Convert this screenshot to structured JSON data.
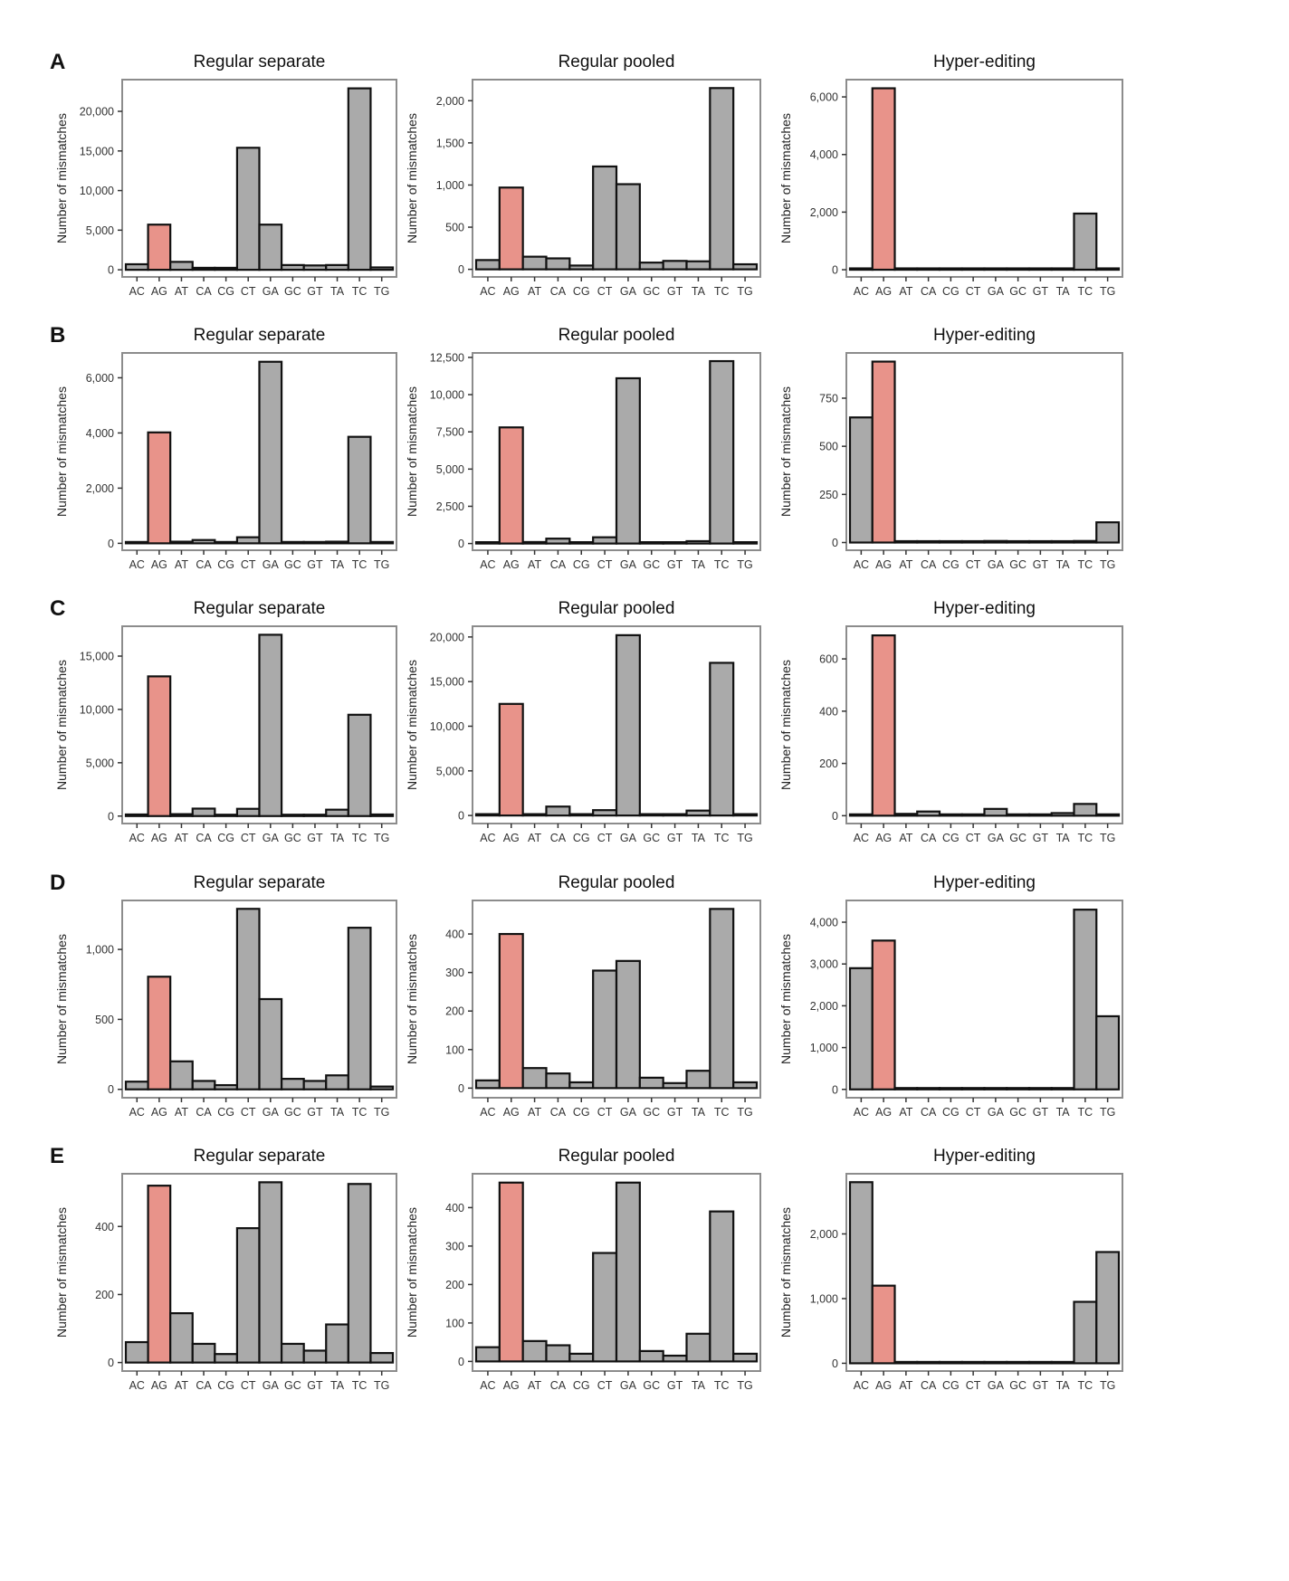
{
  "figure": {
    "colors": {
      "highlight": "#E8938A",
      "bar": "#AAAAAA",
      "edge": "#111111",
      "frame": "#8C8C8C"
    },
    "ylabel": "Number of mismatches"
  },
  "chart_data": [
    {
      "row": "A",
      "panels": [
        {
          "type": "bar",
          "title": "Regular separate",
          "ylabel": "Number of mismatches",
          "highlight": "AG",
          "categories": [
            "AC",
            "AG",
            "AT",
            "CA",
            "CG",
            "CT",
            "GA",
            "GC",
            "GT",
            "TA",
            "TC",
            "TG"
          ],
          "values": [
            700,
            5700,
            1000,
            250,
            250,
            15400,
            5700,
            600,
            550,
            600,
            22900,
            300
          ],
          "yticks": [
            0,
            5000,
            10000,
            15000,
            20000
          ],
          "ytick_labels": [
            "0",
            "5,000",
            "10,000",
            "15,000",
            "20,000"
          ],
          "ylim": [
            -900,
            24000
          ]
        },
        {
          "type": "bar",
          "title": "Regular pooled",
          "ylabel": "Number of mismatches",
          "highlight": "AG",
          "categories": [
            "AC",
            "AG",
            "AT",
            "CA",
            "CG",
            "CT",
            "GA",
            "GC",
            "GT",
            "TA",
            "TC",
            "TG"
          ],
          "values": [
            110,
            970,
            150,
            130,
            45,
            1220,
            1010,
            80,
            100,
            95,
            2150,
            60
          ],
          "yticks": [
            0,
            500,
            1000,
            1500,
            2000
          ],
          "ytick_labels": [
            "0",
            "500",
            "1,000",
            "1,500",
            "2,000"
          ],
          "ylim": [
            -90,
            2250
          ]
        },
        {
          "type": "bar",
          "title": "Hyper-editing",
          "ylabel": "Number of mismatches",
          "highlight": "AG",
          "categories": [
            "AC",
            "AG",
            "AT",
            "CA",
            "CG",
            "CT",
            "GA",
            "GC",
            "GT",
            "TA",
            "TC",
            "TG"
          ],
          "values": [
            0,
            6300,
            5,
            5,
            5,
            5,
            40,
            5,
            5,
            20,
            1950,
            5
          ],
          "yticks": [
            0,
            2000,
            4000,
            6000
          ],
          "ytick_labels": [
            "0",
            "2,000",
            "4,000",
            "6,000"
          ],
          "ylim": [
            -250,
            6600
          ]
        }
      ]
    },
    {
      "row": "B",
      "panels": [
        {
          "type": "bar",
          "title": "Regular separate",
          "ylabel": "Number of mismatches",
          "highlight": "AG",
          "categories": [
            "AC",
            "AG",
            "AT",
            "CA",
            "CG",
            "CT",
            "GA",
            "GC",
            "GT",
            "TA",
            "TC",
            "TG"
          ],
          "values": [
            30,
            4020,
            60,
            120,
            20,
            220,
            6580,
            20,
            20,
            60,
            3860,
            30
          ],
          "yticks": [
            0,
            2000,
            4000,
            6000
          ],
          "ytick_labels": [
            "0",
            "2,000",
            "4,000",
            "6,000"
          ],
          "ylim": [
            -250,
            6900
          ]
        },
        {
          "type": "bar",
          "title": "Regular pooled",
          "ylabel": "Number of mismatches",
          "highlight": "AG",
          "categories": [
            "AC",
            "AG",
            "AT",
            "CA",
            "CG",
            "CT",
            "GA",
            "GC",
            "GT",
            "TA",
            "TC",
            "TG"
          ],
          "values": [
            60,
            7800,
            100,
            330,
            30,
            420,
            11100,
            50,
            40,
            160,
            12250,
            70
          ],
          "yticks": [
            0,
            2500,
            5000,
            7500,
            10000,
            12500
          ],
          "ytick_labels": [
            "0",
            "2,500",
            "5,000",
            "7,500",
            "10,000",
            "12,500"
          ],
          "ylim": [
            -450,
            12800
          ]
        },
        {
          "type": "bar",
          "title": "Hyper-editing",
          "ylabel": "Number of mismatches",
          "highlight": "AG",
          "categories": [
            "AC",
            "AG",
            "AT",
            "CA",
            "CG",
            "CT",
            "GA",
            "GC",
            "GT",
            "TA",
            "TC",
            "TG"
          ],
          "values": [
            650,
            940,
            3,
            2,
            3,
            5,
            8,
            2,
            3,
            2,
            8,
            105
          ],
          "yticks": [
            0,
            250,
            500,
            750
          ],
          "ytick_labels": [
            "0",
            "250",
            "500",
            "750"
          ],
          "ylim": [
            -40,
            985
          ]
        }
      ]
    },
    {
      "row": "C",
      "panels": [
        {
          "type": "bar",
          "title": "Regular separate",
          "ylabel": "Number of mismatches",
          "highlight": "AG",
          "categories": [
            "AC",
            "AG",
            "AT",
            "CA",
            "CG",
            "CT",
            "GA",
            "GC",
            "GT",
            "TA",
            "TC",
            "TG"
          ],
          "values": [
            150,
            13100,
            180,
            700,
            40,
            680,
            17000,
            100,
            40,
            600,
            9500,
            150
          ],
          "yticks": [
            0,
            5000,
            10000,
            15000
          ],
          "ytick_labels": [
            "0",
            "5,000",
            "10,000",
            "15,000"
          ],
          "ylim": [
            -700,
            17800
          ]
        },
        {
          "type": "bar",
          "title": "Regular pooled",
          "ylabel": "Number of mismatches",
          "highlight": "AG",
          "categories": [
            "AC",
            "AG",
            "AT",
            "CA",
            "CG",
            "CT",
            "GA",
            "GC",
            "GT",
            "TA",
            "TC",
            "TG"
          ],
          "values": [
            120,
            12500,
            140,
            1000,
            40,
            600,
            20200,
            90,
            40,
            550,
            17100,
            150
          ],
          "yticks": [
            0,
            5000,
            10000,
            15000,
            20000
          ],
          "ytick_labels": [
            "0",
            "5,000",
            "10,000",
            "15,000",
            "20,000"
          ],
          "ylim": [
            -900,
            21200
          ]
        },
        {
          "type": "bar",
          "title": "Hyper-editing",
          "ylabel": "Number of mismatches",
          "highlight": "AG",
          "categories": [
            "AC",
            "AG",
            "AT",
            "CA",
            "CG",
            "CT",
            "GA",
            "GC",
            "GT",
            "TA",
            "TC",
            "TG"
          ],
          "values": [
            1,
            690,
            7,
            16,
            1,
            5,
            26,
            1,
            5,
            10,
            45,
            2
          ],
          "yticks": [
            0,
            200,
            400,
            600
          ],
          "ytick_labels": [
            "0",
            "200",
            "400",
            "600"
          ],
          "ylim": [
            -30,
            725
          ]
        }
      ]
    },
    {
      "row": "D",
      "panels": [
        {
          "type": "bar",
          "title": "Regular separate",
          "ylabel": "Number of mismatches",
          "highlight": "AG",
          "categories": [
            "AC",
            "AG",
            "AT",
            "CA",
            "CG",
            "CT",
            "GA",
            "GC",
            "GT",
            "TA",
            "TC",
            "TG"
          ],
          "values": [
            55,
            805,
            200,
            60,
            30,
            1290,
            645,
            75,
            60,
            100,
            1155,
            20
          ],
          "yticks": [
            0,
            500,
            1000
          ],
          "ytick_labels": [
            "0",
            "500",
            "1,000"
          ],
          "ylim": [
            -60,
            1350
          ]
        },
        {
          "type": "bar",
          "title": "Regular pooled",
          "ylabel": "Number of mismatches",
          "highlight": "AG",
          "categories": [
            "AC",
            "AG",
            "AT",
            "CA",
            "CG",
            "CT",
            "GA",
            "GC",
            "GT",
            "TA",
            "TC",
            "TG"
          ],
          "values": [
            20,
            400,
            52,
            38,
            15,
            305,
            330,
            27,
            13,
            45,
            465,
            15
          ],
          "yticks": [
            0,
            100,
            200,
            300,
            400
          ],
          "ytick_labels": [
            "0",
            "100",
            "200",
            "300",
            "400"
          ],
          "ylim": [
            -25,
            487
          ]
        },
        {
          "type": "bar",
          "title": "Hyper-editing",
          "ylabel": "Number of mismatches",
          "highlight": "AG",
          "categories": [
            "AC",
            "AG",
            "AT",
            "CA",
            "CG",
            "CT",
            "GA",
            "GC",
            "GT",
            "TA",
            "TC",
            "TG"
          ],
          "values": [
            2900,
            3560,
            5,
            5,
            5,
            10,
            5,
            5,
            5,
            5,
            4300,
            1750
          ],
          "yticks": [
            0,
            1000,
            2000,
            3000,
            4000
          ],
          "ytick_labels": [
            "0",
            "1,000",
            "2,000",
            "3,000",
            "4,000"
          ],
          "ylim": [
            -200,
            4520
          ]
        }
      ]
    },
    {
      "row": "E",
      "panels": [
        {
          "type": "bar",
          "title": "Regular separate",
          "ylabel": "Number of mismatches",
          "highlight": "AG",
          "categories": [
            "AC",
            "AG",
            "AT",
            "CA",
            "CG",
            "CT",
            "GA",
            "GC",
            "GT",
            "TA",
            "TC",
            "TG"
          ],
          "values": [
            60,
            520,
            145,
            55,
            25,
            395,
            530,
            55,
            35,
            112,
            525,
            28
          ],
          "yticks": [
            0,
            200,
            400
          ],
          "ytick_labels": [
            "0",
            "200",
            "400"
          ],
          "ylim": [
            -25,
            555
          ]
        },
        {
          "type": "bar",
          "title": "Regular pooled",
          "ylabel": "Number of mismatches",
          "highlight": "AG",
          "categories": [
            "AC",
            "AG",
            "AT",
            "CA",
            "CG",
            "CT",
            "GA",
            "GC",
            "GT",
            "TA",
            "TC",
            "TG"
          ],
          "values": [
            37,
            465,
            53,
            42,
            20,
            282,
            465,
            27,
            15,
            72,
            390,
            20
          ],
          "yticks": [
            0,
            100,
            200,
            300,
            400
          ],
          "ytick_labels": [
            "0",
            "100",
            "200",
            "300",
            "400"
          ],
          "ylim": [
            -25,
            488
          ]
        },
        {
          "type": "bar",
          "title": "Hyper-editing",
          "ylabel": "Number of mismatches",
          "highlight": "AG",
          "categories": [
            "AC",
            "AG",
            "AT",
            "CA",
            "CG",
            "CT",
            "GA",
            "GC",
            "GT",
            "TA",
            "TC",
            "TG"
          ],
          "values": [
            2800,
            1200,
            5,
            5,
            5,
            15,
            5,
            5,
            5,
            5,
            950,
            1720
          ],
          "yticks": [
            0,
            1000,
            2000
          ],
          "ytick_labels": [
            "0",
            "1,000",
            "2,000"
          ],
          "ylim": [
            -120,
            2930
          ]
        }
      ]
    }
  ]
}
